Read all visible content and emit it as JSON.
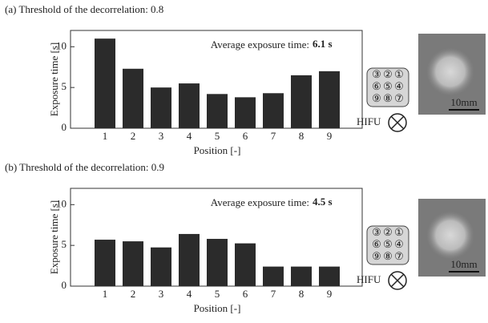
{
  "chart_data": [
    {
      "type": "bar",
      "title": "(a) Threshold of the decorrelation: 0.8",
      "annotation": "Average exposure time:",
      "annotation_value": "6.1 s",
      "x_label": "Position [-]",
      "y_label": "Exposure time [s]",
      "categories": [
        "1",
        "2",
        "3",
        "4",
        "5",
        "6",
        "7",
        "8",
        "9"
      ],
      "values": [
        11.0,
        7.3,
        5.0,
        5.5,
        4.2,
        3.8,
        4.3,
        6.5,
        7.0
      ],
      "color": "#2b2b2b",
      "ylim": [
        0,
        12
      ],
      "yticks": [
        0,
        5,
        10
      ],
      "inset": {
        "grid": [
          [
            "③",
            "②",
            "①"
          ],
          [
            "⑥",
            "⑤",
            "④"
          ],
          [
            "⑨",
            "⑧",
            "⑦"
          ]
        ],
        "source_label": "HIFU",
        "scale_label": "10mm"
      }
    },
    {
      "type": "bar",
      "title": "(b) Threshold of the decorrelation: 0.9",
      "annotation": "Average exposure time:",
      "annotation_value": "4.5 s",
      "x_label": "Position [-]",
      "y_label": "Exposure time [s]",
      "categories": [
        "1",
        "2",
        "3",
        "4",
        "5",
        "6",
        "7",
        "8",
        "9"
      ],
      "values": [
        5.7,
        5.5,
        4.75,
        6.4,
        5.8,
        5.25,
        2.4,
        2.4,
        2.4
      ],
      "color": "#2b2b2b",
      "ylim": [
        0,
        12
      ],
      "yticks": [
        0,
        5,
        10
      ],
      "inset": {
        "grid": [
          [
            "③",
            "②",
            "①"
          ],
          [
            "⑥",
            "⑤",
            "④"
          ],
          [
            "⑨",
            "⑧",
            "⑦"
          ]
        ],
        "source_label": "HIFU",
        "scale_label": "10mm"
      }
    }
  ]
}
